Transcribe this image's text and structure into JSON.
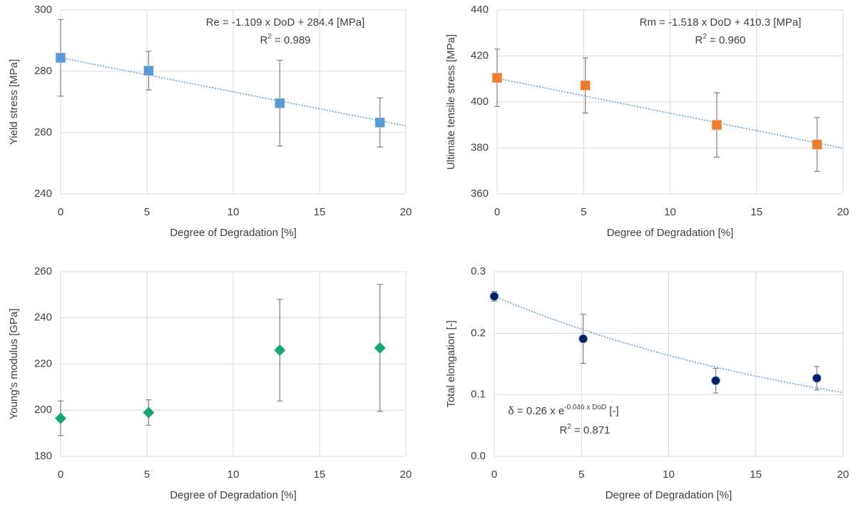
{
  "chart_data": [
    {
      "type": "scatter",
      "x_label": "Degree of Degradation [%]",
      "y_label": "Yield stress [MPa]",
      "x": [
        0,
        5.1,
        12.7,
        18.5
      ],
      "values": [
        284.4,
        280.2,
        269.6,
        263.3
      ],
      "errors": [
        12.5,
        6.3,
        14,
        8
      ],
      "color": "#5b9bd5",
      "marker": "square",
      "xlim": [
        0,
        20
      ],
      "xticks": [
        0,
        5,
        10,
        15,
        20
      ],
      "ylim": [
        240,
        300
      ],
      "yticks": [
        240,
        260,
        280,
        300
      ],
      "grid": true,
      "trendline": {
        "kind": "linear",
        "slope": -1.109,
        "intercept": 284.4,
        "color": "#5b9bd5"
      },
      "annotations": [
        [
          {
            "text": "Re = -1.109 x DoD + 284.4 [MPa]"
          }
        ],
        [
          {
            "text": "R"
          },
          {
            "text": "2",
            "sup": true
          },
          {
            "text": " = 0.989"
          }
        ]
      ]
    },
    {
      "type": "scatter",
      "x_label": "Degree of Degradation [%]",
      "y_label": "Ultimate tensile stress [MPa]",
      "x": [
        0,
        5.1,
        12.7,
        18.5
      ],
      "values": [
        410.5,
        407.2,
        390,
        381.5
      ],
      "errors": [
        12.5,
        12,
        14,
        11.7
      ],
      "color": "#ed7d31",
      "marker": "square",
      "xlim": [
        0,
        20
      ],
      "xticks": [
        0,
        5,
        10,
        15,
        20
      ],
      "ylim": [
        360,
        440
      ],
      "yticks": [
        360,
        380,
        400,
        420,
        440
      ],
      "grid": true,
      "trendline": {
        "kind": "linear",
        "slope": -1.518,
        "intercept": 410.3,
        "color": "#5b9bd5"
      },
      "annotations": [
        [
          {
            "text": "Rm = -1.518 x DoD + 410.3 [MPa]"
          }
        ],
        [
          {
            "text": "R"
          },
          {
            "text": "2",
            "sup": true
          },
          {
            "text": " = 0.960"
          }
        ]
      ]
    },
    {
      "type": "scatter",
      "x_label": "Degree of Degradation [%]",
      "y_label": "Young's modulus [GPa]",
      "x": [
        0,
        5.1,
        12.7,
        18.5
      ],
      "values": [
        196.5,
        199,
        226,
        227
      ],
      "errors": [
        7.5,
        5.5,
        22,
        27.5
      ],
      "color": "#17a673",
      "marker": "diamond",
      "xlim": [
        0,
        20
      ],
      "xticks": [
        0,
        5,
        10,
        15,
        20
      ],
      "ylim": [
        180,
        260
      ],
      "yticks": [
        180,
        200,
        220,
        240,
        260
      ],
      "grid": true
    },
    {
      "type": "scatter",
      "x_label": "Degree of Degradation [%]",
      "y_label": "Total elongation [-]",
      "x": [
        0,
        5.1,
        12.7,
        18.5
      ],
      "values": [
        0.26,
        0.191,
        0.123,
        0.127
      ],
      "errors": [
        0.008,
        0.04,
        0.02,
        0.019
      ],
      "color": "#002060",
      "marker": "circle",
      "xlim": [
        0,
        20
      ],
      "xticks": [
        0,
        5,
        10,
        15,
        20
      ],
      "ylim": [
        0,
        0.3
      ],
      "yticks": [
        {
          "value": 0,
          "label": "0.0"
        },
        0.1,
        0.2,
        0.3
      ],
      "grid": true,
      "trendline": {
        "kind": "exponential",
        "coefficient": 0.26,
        "rate": -0.046,
        "color": "#5b9bd5"
      },
      "annotations": [
        [
          {
            "text": "δ = 0.26 x e"
          },
          {
            "text": "-0.046 x DoD",
            "sup": true
          },
          {
            "text": " [-]"
          }
        ],
        [
          {
            "text": "R"
          },
          {
            "text": "2",
            "sup": true
          },
          {
            "text": " = 0.871"
          }
        ]
      ]
    }
  ]
}
